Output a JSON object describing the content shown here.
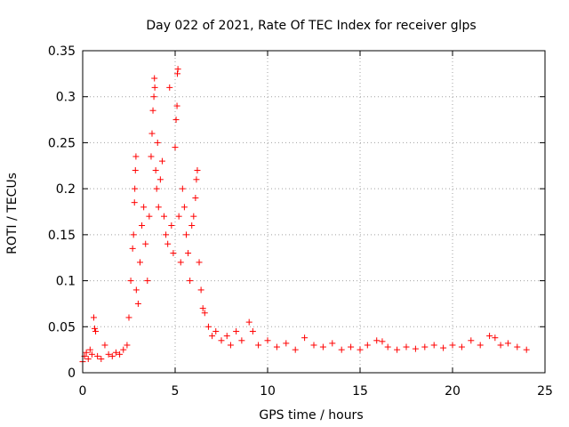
{
  "chart_data": {
    "type": "scatter",
    "title": "Day 022 of 2021, Rate Of TEC Index for receiver glps",
    "xlabel": "GPS time / hours",
    "ylabel": "ROTI / TECUs",
    "xlim": [
      0,
      25
    ],
    "ylim": [
      0,
      0.35
    ],
    "xticks": [
      "0",
      "5",
      "10",
      "15",
      "20",
      "25"
    ],
    "yticks": [
      "0",
      "0.05",
      "0.1",
      "0.15",
      "0.2",
      "0.25",
      "0.3",
      "0.35"
    ],
    "grid": true,
    "marker": "plus",
    "color": "#ff0000",
    "series": [
      {
        "points": [
          [
            0.0,
            0.012
          ],
          [
            0.1,
            0.018
          ],
          [
            0.2,
            0.022
          ],
          [
            0.3,
            0.015
          ],
          [
            0.4,
            0.025
          ],
          [
            0.5,
            0.02
          ],
          [
            0.6,
            0.06
          ],
          [
            0.65,
            0.048
          ],
          [
            0.7,
            0.045
          ],
          [
            0.8,
            0.018
          ],
          [
            1.0,
            0.015
          ],
          [
            1.2,
            0.03
          ],
          [
            1.4,
            0.02
          ],
          [
            1.6,
            0.018
          ],
          [
            1.8,
            0.022
          ],
          [
            2.0,
            0.02
          ],
          [
            2.2,
            0.025
          ],
          [
            2.4,
            0.03
          ],
          [
            2.5,
            0.06
          ],
          [
            2.6,
            0.1
          ],
          [
            2.7,
            0.135
          ],
          [
            2.75,
            0.15
          ],
          [
            2.8,
            0.185
          ],
          [
            2.82,
            0.2
          ],
          [
            2.85,
            0.22
          ],
          [
            2.88,
            0.235
          ],
          [
            2.9,
            0.09
          ],
          [
            3.0,
            0.075
          ],
          [
            3.1,
            0.12
          ],
          [
            3.2,
            0.16
          ],
          [
            3.3,
            0.18
          ],
          [
            3.4,
            0.14
          ],
          [
            3.5,
            0.1
          ],
          [
            3.6,
            0.17
          ],
          [
            3.7,
            0.235
          ],
          [
            3.75,
            0.26
          ],
          [
            3.8,
            0.285
          ],
          [
            3.85,
            0.3
          ],
          [
            3.88,
            0.32
          ],
          [
            3.9,
            0.31
          ],
          [
            3.95,
            0.22
          ],
          [
            4.0,
            0.2
          ],
          [
            4.05,
            0.25
          ],
          [
            4.1,
            0.18
          ],
          [
            4.2,
            0.21
          ],
          [
            4.3,
            0.23
          ],
          [
            4.4,
            0.17
          ],
          [
            4.5,
            0.15
          ],
          [
            4.6,
            0.14
          ],
          [
            4.7,
            0.31
          ],
          [
            4.8,
            0.16
          ],
          [
            4.9,
            0.13
          ],
          [
            5.0,
            0.245
          ],
          [
            5.05,
            0.275
          ],
          [
            5.1,
            0.29
          ],
          [
            5.12,
            0.325
          ],
          [
            5.15,
            0.33
          ],
          [
            5.2,
            0.17
          ],
          [
            5.3,
            0.12
          ],
          [
            5.4,
            0.2
          ],
          [
            5.5,
            0.18
          ],
          [
            5.6,
            0.15
          ],
          [
            5.7,
            0.13
          ],
          [
            5.8,
            0.1
          ],
          [
            5.9,
            0.16
          ],
          [
            6.0,
            0.17
          ],
          [
            6.1,
            0.19
          ],
          [
            6.15,
            0.21
          ],
          [
            6.2,
            0.22
          ],
          [
            6.3,
            0.12
          ],
          [
            6.4,
            0.09
          ],
          [
            6.5,
            0.07
          ],
          [
            6.6,
            0.065
          ],
          [
            6.8,
            0.05
          ],
          [
            7.0,
            0.04
          ],
          [
            7.2,
            0.045
          ],
          [
            7.5,
            0.035
          ],
          [
            7.8,
            0.04
          ],
          [
            8.0,
            0.03
          ],
          [
            8.3,
            0.045
          ],
          [
            8.6,
            0.035
          ],
          [
            9.0,
            0.055
          ],
          [
            9.2,
            0.045
          ],
          [
            9.5,
            0.03
          ],
          [
            10.0,
            0.035
          ],
          [
            10.5,
            0.028
          ],
          [
            11.0,
            0.032
          ],
          [
            11.5,
            0.025
          ],
          [
            12.0,
            0.038
          ],
          [
            12.5,
            0.03
          ],
          [
            13.0,
            0.028
          ],
          [
            13.5,
            0.032
          ],
          [
            14.0,
            0.025
          ],
          [
            14.5,
            0.028
          ],
          [
            15.0,
            0.025
          ],
          [
            15.4,
            0.03
          ],
          [
            15.9,
            0.035
          ],
          [
            16.2,
            0.034
          ],
          [
            16.5,
            0.028
          ],
          [
            17.0,
            0.025
          ],
          [
            17.5,
            0.028
          ],
          [
            18.0,
            0.026
          ],
          [
            18.5,
            0.028
          ],
          [
            19.0,
            0.03
          ],
          [
            19.5,
            0.027
          ],
          [
            20.0,
            0.03
          ],
          [
            20.5,
            0.028
          ],
          [
            21.0,
            0.035
          ],
          [
            21.5,
            0.03
          ],
          [
            22.0,
            0.04
          ],
          [
            22.3,
            0.038
          ],
          [
            22.6,
            0.03
          ],
          [
            23.0,
            0.032
          ],
          [
            23.5,
            0.028
          ],
          [
            24.0,
            0.025
          ]
        ]
      }
    ]
  }
}
